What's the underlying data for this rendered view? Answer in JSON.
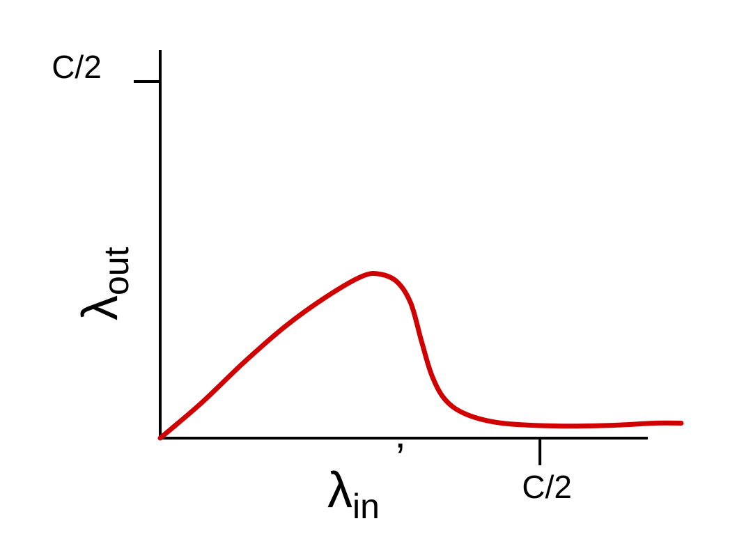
{
  "chart_data": {
    "type": "line",
    "x": [
      0,
      0.055,
      0.11,
      0.165,
      0.22,
      0.266,
      0.289,
      0.312,
      0.33,
      0.344,
      0.358,
      0.376,
      0.404,
      0.45,
      0.523,
      0.596,
      0.651,
      0.686
    ],
    "values": [
      0,
      0.05,
      0.106,
      0.157,
      0.199,
      0.227,
      0.23,
      0.219,
      0.189,
      0.136,
      0.087,
      0.053,
      0.033,
      0.021,
      0.017,
      0.018,
      0.021,
      0.021
    ],
    "color": "#d00000",
    "xlim": [
      0,
      0.642
    ],
    "ylim": [
      0,
      0.544
    ],
    "xticks": [
      {
        "value": 0.5,
        "label": "C/2"
      }
    ],
    "yticks": [
      {
        "value": 0.5,
        "label": "C/2"
      }
    ],
    "xlabel": {
      "symbol": "λ",
      "subscript": "in",
      "suffix": "’"
    },
    "ylabel": {
      "symbol": "λ",
      "subscript": "out"
    }
  }
}
